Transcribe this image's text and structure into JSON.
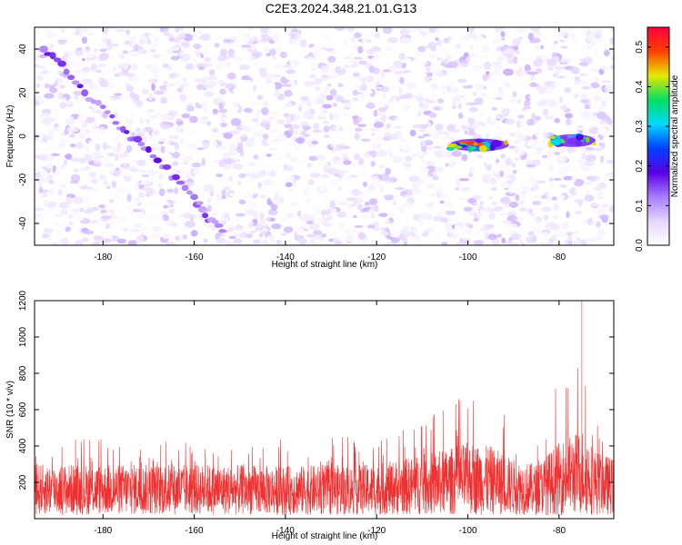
{
  "figure": {
    "title": "C2E3.2024.348.21.01.G13"
  },
  "colors": {
    "snr_line": "#f03030",
    "colormap": [
      "#ffffff",
      "#e6d6ff",
      "#a77bff",
      "#5a00e6",
      "#0040ff",
      "#00d8ff",
      "#00e060",
      "#e8e800",
      "#ff4000",
      "#ff0040"
    ]
  },
  "chart_data": [
    {
      "id": "spectrogram",
      "type": "heatmap",
      "xlabel": "Height of straight line (km)",
      "ylabel": "Frequency (Hz)",
      "xlim": [
        -195,
        -68
      ],
      "ylim": [
        -50,
        50
      ],
      "xticks": [
        -180,
        -160,
        -140,
        -120,
        -100,
        -80
      ],
      "yticks": [
        -40,
        -20,
        0,
        20,
        40
      ],
      "colorbar": {
        "label": "Normalized spectral amplitude",
        "range": [
          0,
          0.55
        ],
        "ticks": [
          0.0,
          0.1,
          0.2,
          0.3,
          0.4,
          0.5
        ],
        "tick_labels": [
          "0.0",
          "0.1",
          "0.2",
          "0.3",
          "0.4",
          "0.5"
        ]
      },
      "features": [
        {
          "name": "diagonal track",
          "points": [
            [
              -193,
              40
            ],
            [
              -188,
              30
            ],
            [
              -183,
              18
            ],
            [
              -178,
              8
            ],
            [
              -174,
              0
            ],
            [
              -170,
              -6
            ],
            [
              -165,
              -18
            ],
            [
              -160,
              -28
            ],
            [
              -157,
              -38
            ],
            [
              -153,
              -45
            ]
          ],
          "amplitude": 0.15
        },
        {
          "name": "band near -100 km",
          "x_range": [
            -104,
            -91
          ],
          "y_center": -4,
          "amplitude": 0.45
        },
        {
          "name": "band near -78 km",
          "x_range": [
            -82,
            -72
          ],
          "y_center": -2,
          "amplitude": 0.4
        }
      ]
    },
    {
      "id": "snr",
      "type": "line",
      "xlabel": "Height of straight line (km)",
      "ylabel": "SNR (10 * v/v)",
      "xlim": [
        -195,
        -68
      ],
      "ylim": [
        0,
        1200
      ],
      "xticks": [
        -180,
        -160,
        -140,
        -120,
        -100,
        -80
      ],
      "yticks": [
        200,
        400,
        600,
        800,
        1000,
        1200
      ],
      "envelope": {
        "x": [
          -195,
          -180,
          -160,
          -140,
          -120,
          -105,
          -100,
          -95,
          -90,
          -85,
          -80,
          -76,
          -75,
          -74,
          -72,
          -68
        ],
        "typical_max": [
          300,
          300,
          300,
          290,
          300,
          380,
          420,
          400,
          330,
          300,
          420,
          480,
          500,
          470,
          380,
          330
        ],
        "peak_max": [
          450,
          440,
          420,
          440,
          460,
          620,
          700,
          650,
          540,
          470,
          760,
          820,
          1200,
          760,
          600,
          500
        ]
      },
      "typical_min": 20
    }
  ]
}
